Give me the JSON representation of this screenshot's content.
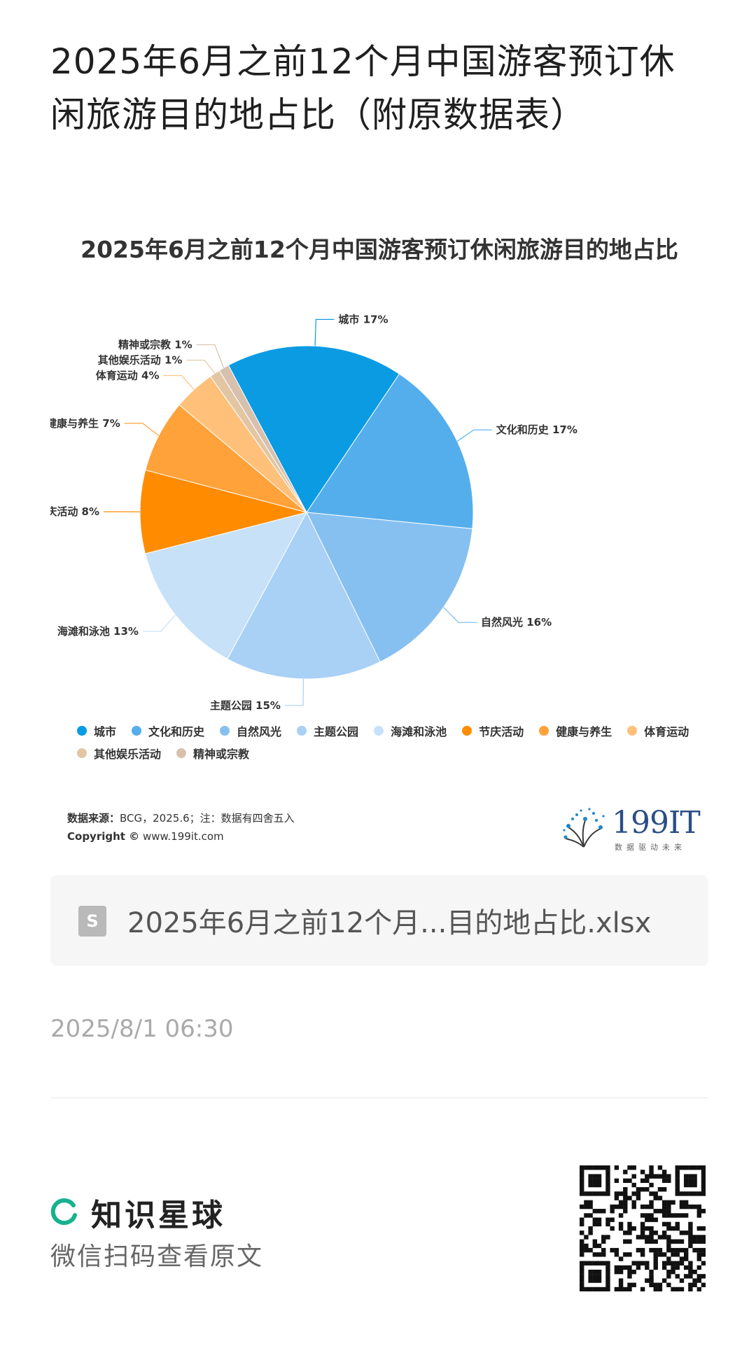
{
  "page": {
    "title": "2025年6月之前12个月中国游客预订休闲旅游目的地占比（附原数据表）"
  },
  "chart_data": {
    "type": "pie",
    "title": "2025年6月之前12个月中国游客预订休闲旅游目的地占比",
    "slices": [
      {
        "label": "城市",
        "value": 17,
        "color": "#0a9be3"
      },
      {
        "label": "文化和历史",
        "value": 17,
        "color": "#55aeec"
      },
      {
        "label": "自然风光",
        "value": 16,
        "color": "#86c0f0"
      },
      {
        "label": "主题公园",
        "value": 15,
        "color": "#a9d0f5"
      },
      {
        "label": "海滩和泳池",
        "value": 13,
        "color": "#c7e1f8"
      },
      {
        "label": "节庆活动",
        "value": 8,
        "color": "#ff8c00"
      },
      {
        "label": "健康与养生",
        "value": 7,
        "color": "#ffa23a"
      },
      {
        "label": "体育运动",
        "value": 4,
        "color": "#ffc07a"
      },
      {
        "label": "其他娱乐活动",
        "value": 1,
        "color": "#e2c6a4"
      },
      {
        "label": "精神或宗教",
        "value": 1,
        "color": "#d7c1ae"
      }
    ],
    "label_format": "{label} {value}%",
    "legend_position": "bottom"
  },
  "footer_note": {
    "source_label": "数据来源：",
    "source_text": "BCG，2025.6；注：数据有四舍五入",
    "copyright_label": "Copyright ©",
    "copyright_text": "www.199it.com"
  },
  "brand": {
    "name": "199IT",
    "slogan": "数据驱动未来"
  },
  "attachment": {
    "icon": "file-icon",
    "icon_glyph": "S",
    "filename": "2025年6月之前12个月...目的地占比.xlsx"
  },
  "post": {
    "timestamp": "2025/8/1 06:30"
  },
  "share": {
    "app_name": "知识星球",
    "hint": "微信扫码查看原文",
    "accent": "#16b28e"
  }
}
